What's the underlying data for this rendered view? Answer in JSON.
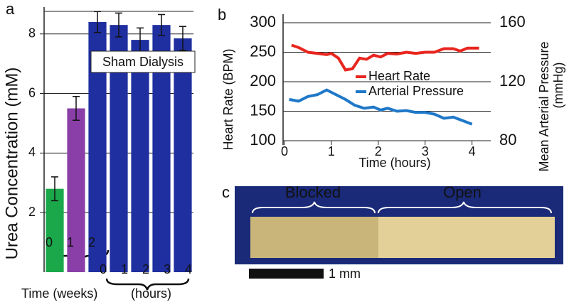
{
  "chart_data": [
    {
      "type": "bar",
      "panel": "a",
      "ylabel": "Urea Concentration (mM)",
      "week_labels": [
        "0",
        "1",
        "2",
        null,
        null,
        null,
        null
      ],
      "hour_labels": [
        null,
        null,
        "0",
        "1",
        "2",
        "3",
        "4"
      ],
      "x_group_labels": [
        "Time (weeks)",
        "(hours)"
      ],
      "annotation": "Sham Dialysis",
      "values": [
        2.8,
        5.5,
        8.4,
        8.3,
        7.8,
        8.3,
        7.85
      ],
      "errors": [
        0.4,
        0.4,
        0.35,
        0.4,
        0.4,
        0.35,
        0.4
      ],
      "colors": [
        "#1aa84a",
        "#8a3fa8",
        "#1f2fa0",
        "#1f2fa0",
        "#1f2fa0",
        "#1f2fa0",
        "#1f2fa0"
      ],
      "ylim": [
        0,
        8.9
      ],
      "yticks": [
        2,
        4,
        6,
        8
      ],
      "grid": true
    },
    {
      "type": "line",
      "panel": "b",
      "xlabel": "Time (hours)",
      "ylabel": "Heart Rate (BPM)",
      "y2label": [
        "Mean Arterial Pressure",
        "(mmHg)"
      ],
      "xlim": [
        0,
        4.4
      ],
      "xticks": [
        0,
        1,
        2,
        3,
        4
      ],
      "ylim": [
        100,
        300
      ],
      "yticks": [
        100,
        150,
        200,
        250,
        300
      ],
      "y2lim": [
        80,
        160
      ],
      "y2ticks": [
        80,
        120,
        160
      ],
      "grid": true,
      "series": [
        {
          "name": "Heart Rate",
          "color": "#e8261f",
          "x": [
            0.15,
            0.3,
            0.5,
            0.7,
            0.9,
            1.0,
            1.15,
            1.3,
            1.45,
            1.6,
            1.75,
            1.9,
            2.05,
            2.2,
            2.4,
            2.6,
            2.8,
            3.0,
            3.2,
            3.4,
            3.6,
            3.75,
            3.9,
            4.15
          ],
          "values": [
            262,
            258,
            250,
            248,
            246,
            248,
            240,
            220,
            222,
            240,
            238,
            245,
            242,
            248,
            247,
            250,
            248,
            250,
            250,
            256,
            256,
            252,
            257,
            257
          ]
        },
        {
          "name": "Arterial Pressure",
          "color": "#1f78c8",
          "axis": "y2",
          "x": [
            0.1,
            0.3,
            0.5,
            0.7,
            0.9,
            1.1,
            1.3,
            1.5,
            1.7,
            1.9,
            2.05,
            2.2,
            2.4,
            2.6,
            2.8,
            3.0,
            3.2,
            3.4,
            3.6,
            3.8,
            4.0
          ],
          "values": [
            108,
            106.8,
            110,
            111.2,
            114.4,
            111.2,
            108,
            104,
            102,
            102.8,
            100.8,
            102,
            100,
            100.4,
            99.2,
            99.2,
            98,
            95.2,
            96,
            93.6,
            91.2
          ]
        }
      ]
    }
  ],
  "panel_c": {
    "label": "c",
    "regions": [
      "Blocked",
      "Open"
    ],
    "scale_label": "1 mm"
  }
}
